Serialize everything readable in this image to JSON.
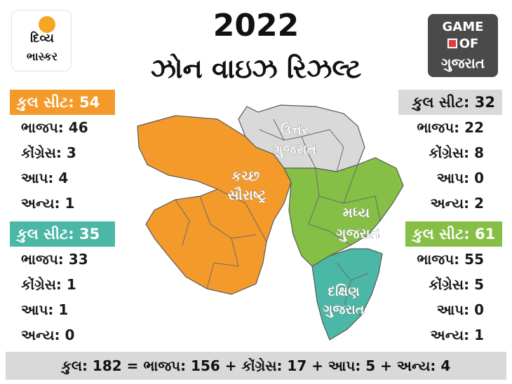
{
  "title": {
    "year": "2022",
    "subtitle": "ઝોન વાઇઝ રિઝલ્ટ"
  },
  "logo_left": {
    "line1": "દિવ્ય",
    "line2": "ભાસ્કર"
  },
  "logo_right": {
    "line1": "GAME",
    "line2": "OF",
    "line3": "ગુજરાત"
  },
  "zones": {
    "kutch_saurashtra": {
      "label_line1": "કચ્છ",
      "label_line2": "સૌરાષ્ટ્ર",
      "header_label": "કુલ સીટ:",
      "total": "54",
      "rows": [
        {
          "party": "ભાજપ:",
          "seats": "46"
        },
        {
          "party": "કોંગ્રેસ:",
          "seats": "3"
        },
        {
          "party": "આપ:",
          "seats": "4"
        },
        {
          "party": "અન્ય:",
          "seats": "1"
        }
      ]
    },
    "south": {
      "label_line1": "દક્ષિણ",
      "label_line2": "ગુજરાત",
      "header_label": "કુલ સીટ:",
      "total": "35",
      "rows": [
        {
          "party": "ભાજપ:",
          "seats": "33"
        },
        {
          "party": "કોંગ્રેસ:",
          "seats": "1"
        },
        {
          "party": "આપ:",
          "seats": "1"
        },
        {
          "party": "અન્ય:",
          "seats": "0"
        }
      ]
    },
    "north": {
      "label_line1": "ઉત્તર",
      "label_line2": "ગુજરાત",
      "header_label": "કુલ સીટ:",
      "total": "32",
      "rows": [
        {
          "party": "ભાજપ:",
          "seats": "22"
        },
        {
          "party": "કોંગ્રેસ:",
          "seats": "8"
        },
        {
          "party": "આપ:",
          "seats": "0"
        },
        {
          "party": "અન્ય:",
          "seats": "2"
        }
      ]
    },
    "central": {
      "label_line1": "મધ્ય",
      "label_line2": "ગુજરાત",
      "header_label": "કુલ સીટ:",
      "total": "61",
      "rows": [
        {
          "party": "ભાજપ:",
          "seats": "55"
        },
        {
          "party": "કોંગ્રેસ:",
          "seats": "5"
        },
        {
          "party": "આપ:",
          "seats": "0"
        },
        {
          "party": "અન્ય:",
          "seats": "1"
        }
      ]
    }
  },
  "colors": {
    "kutch_saurashtra": "#f39a2b",
    "south": "#4bb7a6",
    "north": "#d9d9d9",
    "central": "#86bf45"
  },
  "footer": "કુલ: 182 = ભાજપ: 156 + કોંગ્રેસ: 17 + આપ: 5 + અન્ય: 4"
}
